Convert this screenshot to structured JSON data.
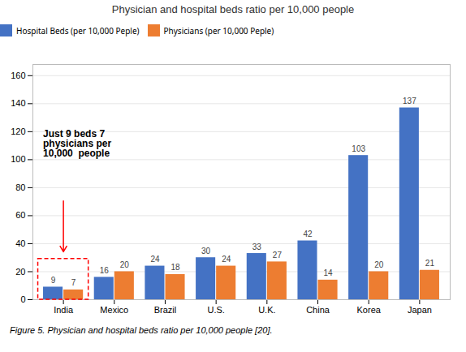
{
  "chart_data": {
    "type": "bar",
    "title": "Physician and hospital beds ratio per 10,000 people",
    "categories": [
      "India",
      "Mexico",
      "Brazil",
      "U.S.",
      "U.K.",
      "China",
      "Korea",
      "Japan"
    ],
    "series": [
      {
        "name": "Hospital Beds (per 10,000 Peple)",
        "color": "#4472C4",
        "values": [
          9,
          16,
          24,
          30,
          33,
          42,
          103,
          137
        ]
      },
      {
        "name": "Physicians (per 10,000 Peple)",
        "color": "#ED7D31",
        "values": [
          7,
          20,
          18,
          24,
          27,
          14,
          20,
          21
        ]
      }
    ],
    "ylim": [
      0,
      168
    ],
    "yticks": [
      0,
      20,
      40,
      60,
      80,
      100,
      120,
      140,
      160
    ],
    "grid": true,
    "legend": "top",
    "data_labels": true,
    "annotations": [
      {
        "text": [
          "Just 9 beds 7",
          "physicians per",
          "10,000  people"
        ],
        "category": "India",
        "color": "red"
      }
    ],
    "caption": "Figure 5. Physician and hospital beds ratio per 10,000 people [20]."
  }
}
